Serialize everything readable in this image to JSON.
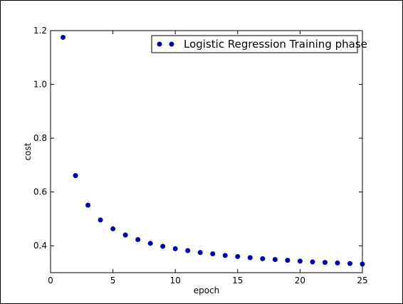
{
  "chart_data": {
    "type": "scatter",
    "title": "",
    "xlabel": "epoch",
    "ylabel": "cost",
    "xlim": [
      0,
      25
    ],
    "ylim": [
      0.3,
      1.2
    ],
    "xticks": [
      0,
      5,
      10,
      15,
      20,
      25
    ],
    "yticks": [
      0.4,
      0.6,
      0.8,
      1.0,
      1.2
    ],
    "xtick_labels": [
      "0",
      "5",
      "10",
      "15",
      "20",
      "25"
    ],
    "ytick_labels": [
      "0.4",
      "0.6",
      "0.8",
      "1.0",
      "1.2"
    ],
    "grid": false,
    "legend_position": "top-right",
    "series": [
      {
        "name": "Logistic Regression Training phase",
        "color": "#0000aa",
        "x": [
          1,
          2,
          3,
          4,
          5,
          6,
          7,
          8,
          9,
          10,
          11,
          12,
          13,
          14,
          15,
          16,
          17,
          18,
          19,
          20,
          21,
          22,
          23,
          24,
          25
        ],
        "y": [
          1.175,
          0.661,
          0.551,
          0.496,
          0.463,
          0.44,
          0.423,
          0.409,
          0.398,
          0.389,
          0.382,
          0.375,
          0.37,
          0.364,
          0.36,
          0.356,
          0.352,
          0.349,
          0.346,
          0.343,
          0.34,
          0.338,
          0.336,
          0.334,
          0.332
        ]
      }
    ]
  }
}
